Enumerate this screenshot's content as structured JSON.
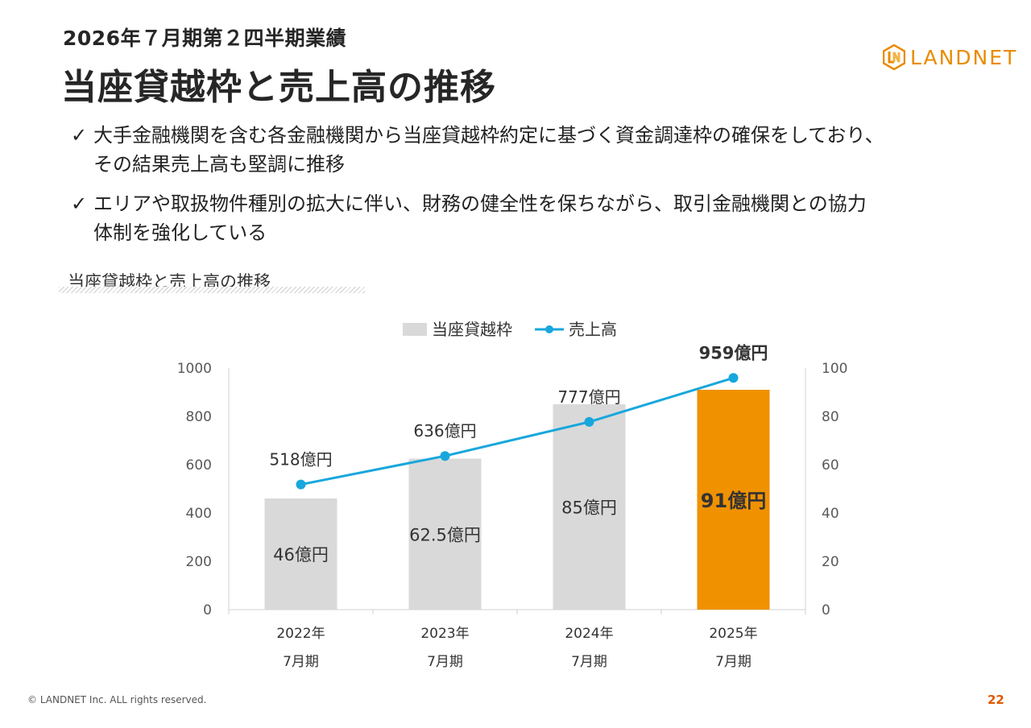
{
  "header": {
    "subtitle": "2026年７月期第２四半期業績",
    "title": "当座貸越枠と売上高の推移"
  },
  "logo": {
    "text": "LANDNET",
    "icon": "landnet-logo-icon",
    "color": "#e98b00"
  },
  "bullets": [
    {
      "icon": "check-icon",
      "line1": "大手金融機関を含む各金融機関から当座貸越枠約定に基づく資金調達枠の確保をしており、",
      "line2": "その結果売上高も堅調に推移"
    },
    {
      "icon": "check-icon",
      "line1": "エリアや取扱物件種別の拡大に伴い、財務の健全性を保ちながら、取引金融機関との協力",
      "line2": "体制を強化している"
    }
  ],
  "chart_heading": "当座貸越枠と売上高の推移",
  "chart_data": {
    "type": "bar",
    "categories": [
      [
        "2022年",
        "7月期"
      ],
      [
        "2023年",
        "7月期"
      ],
      [
        "2024年",
        "7月期"
      ],
      [
        "2025年",
        "7月期"
      ]
    ],
    "series": [
      {
        "name": "当座貸越枠",
        "type": "bar",
        "axis": "right",
        "values": [
          46,
          62.5,
          85,
          91
        ],
        "labels": [
          "46億円",
          "62.5億円",
          "85億円",
          "91億円"
        ],
        "color": "#d9d9d9",
        "highlight_color": "#f09100"
      },
      {
        "name": "売上高",
        "type": "line",
        "axis": "left",
        "values": [
          518,
          636,
          777,
          959
        ],
        "labels": [
          "518億円",
          "636億円",
          "777億円",
          "959億円"
        ],
        "color": "#18a7dc"
      }
    ],
    "y_left": {
      "min": 0,
      "max": 1000,
      "ticks": [
        0,
        200,
        400,
        600,
        800,
        1000
      ]
    },
    "y_right": {
      "min": 0,
      "max": 100,
      "ticks": [
        0,
        20,
        40,
        60,
        80,
        100
      ]
    },
    "legend": "top",
    "grid": false
  },
  "footer": {
    "copyright": "© LANDNET Inc. ALL rights reserved.",
    "page": "22"
  }
}
